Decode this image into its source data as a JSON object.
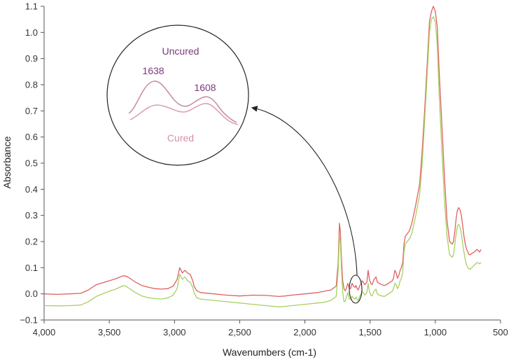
{
  "chart_data": {
    "type": "line",
    "xlabel": "Wavenumbers (cm-1)",
    "ylabel": "Absorbance",
    "xlim": [
      4000,
      500
    ],
    "ylim": [
      -0.1,
      1.1
    ],
    "x_reversed": true,
    "grid": false,
    "x_ticks": [
      "4,000",
      "3,500",
      "3,000",
      "2,500",
      "2,000",
      "1,500",
      "1,000",
      "500"
    ],
    "x_tick_values": [
      4000,
      3500,
      3000,
      2500,
      2000,
      1500,
      1000,
      500
    ],
    "y_ticks": [
      "−0.1",
      "0.0",
      "0.1",
      "0.2",
      "0.3",
      "0.4",
      "0.5",
      "0.6",
      "0.7",
      "0.8",
      "0.9",
      "1.0",
      "1.1"
    ],
    "y_tick_values": [
      -0.1,
      0.0,
      0.1,
      0.2,
      0.3,
      0.4,
      0.5,
      0.6,
      0.7,
      0.8,
      0.9,
      1.0,
      1.1
    ],
    "colors": {
      "uncured": "#e06060",
      "cured": "#a8d060",
      "inset_uncured": "#c890a8",
      "inset_cured": "#e0a0b0",
      "inset_label_uncured": "#7a3a7a",
      "inset_label_cured": "#d890a8"
    },
    "series": [
      {
        "key": "uncured",
        "x": [
          4000,
          3900,
          3800,
          3720,
          3660,
          3600,
          3500,
          3450,
          3400,
          3380,
          3350,
          3300,
          3250,
          3200,
          3150,
          3100,
          3050,
          3010,
          2980,
          2960,
          2940,
          2920,
          2900,
          2880,
          2860,
          2850,
          2830,
          2800,
          2700,
          2600,
          2500,
          2400,
          2300,
          2200,
          2150,
          2100,
          2000,
          1900,
          1850,
          1800,
          1760,
          1745,
          1735,
          1728,
          1720,
          1710,
          1700,
          1690,
          1680,
          1670,
          1660,
          1650,
          1638,
          1625,
          1615,
          1608,
          1600,
          1590,
          1580,
          1560,
          1540,
          1525,
          1515,
          1505,
          1495,
          1485,
          1470,
          1455,
          1445,
          1430,
          1410,
          1390,
          1375,
          1360,
          1345,
          1330,
          1320,
          1310,
          1300,
          1290,
          1280,
          1270,
          1260,
          1250,
          1240,
          1230,
          1200,
          1180,
          1150,
          1120,
          1100,
          1080,
          1060,
          1045,
          1030,
          1015,
          1000,
          985,
          970,
          950,
          930,
          910,
          890,
          870,
          860,
          850,
          840,
          830,
          820,
          810,
          800,
          790,
          780,
          770,
          760,
          750,
          740,
          730,
          720,
          700,
          680,
          660,
          650
        ],
        "y": [
          0.0,
          -0.002,
          0.0,
          0.002,
          0.015,
          0.035,
          0.05,
          0.058,
          0.068,
          0.069,
          0.062,
          0.045,
          0.032,
          0.025,
          0.02,
          0.018,
          0.02,
          0.03,
          0.055,
          0.1,
          0.08,
          0.09,
          0.08,
          0.075,
          0.05,
          0.03,
          0.012,
          0.005,
          0.0,
          -0.005,
          -0.008,
          -0.005,
          -0.006,
          -0.01,
          -0.008,
          -0.005,
          0.0,
          0.005,
          0.01,
          0.015,
          0.03,
          0.12,
          0.27,
          0.24,
          0.14,
          0.05,
          0.018,
          0.012,
          0.025,
          0.04,
          0.022,
          0.02,
          0.04,
          0.028,
          0.025,
          0.032,
          0.02,
          0.015,
          0.03,
          0.05,
          0.035,
          0.045,
          0.09,
          0.055,
          0.04,
          0.035,
          0.055,
          0.065,
          0.045,
          0.04,
          0.035,
          0.032,
          0.035,
          0.04,
          0.045,
          0.05,
          0.06,
          0.09,
          0.08,
          0.06,
          0.07,
          0.09,
          0.1,
          0.12,
          0.19,
          0.22,
          0.24,
          0.27,
          0.34,
          0.42,
          0.55,
          0.72,
          0.9,
          1.04,
          1.08,
          1.1,
          1.08,
          1.02,
          0.85,
          0.65,
          0.45,
          0.28,
          0.2,
          0.19,
          0.2,
          0.24,
          0.29,
          0.32,
          0.33,
          0.32,
          0.3,
          0.26,
          0.22,
          0.19,
          0.17,
          0.16,
          0.15,
          0.15,
          0.155,
          0.16,
          0.17,
          0.16,
          0.17
        ]
      },
      {
        "key": "cured",
        "x": [
          4000,
          3900,
          3800,
          3720,
          3660,
          3600,
          3500,
          3450,
          3400,
          3380,
          3350,
          3300,
          3250,
          3200,
          3150,
          3100,
          3050,
          3010,
          2980,
          2960,
          2940,
          2920,
          2900,
          2880,
          2860,
          2850,
          2830,
          2800,
          2700,
          2600,
          2500,
          2400,
          2300,
          2200,
          2150,
          2100,
          2000,
          1900,
          1850,
          1800,
          1760,
          1745,
          1735,
          1728,
          1720,
          1710,
          1700,
          1690,
          1680,
          1670,
          1660,
          1650,
          1638,
          1625,
          1615,
          1608,
          1600,
          1590,
          1580,
          1560,
          1540,
          1525,
          1515,
          1505,
          1495,
          1485,
          1470,
          1455,
          1445,
          1430,
          1410,
          1390,
          1375,
          1360,
          1345,
          1330,
          1320,
          1310,
          1300,
          1290,
          1280,
          1270,
          1260,
          1250,
          1240,
          1230,
          1200,
          1180,
          1150,
          1120,
          1100,
          1080,
          1060,
          1045,
          1030,
          1015,
          1000,
          985,
          970,
          950,
          930,
          910,
          890,
          870,
          860,
          850,
          840,
          830,
          820,
          810,
          800,
          790,
          780,
          770,
          760,
          750,
          740,
          730,
          720,
          700,
          680,
          660,
          650
        ],
        "y": [
          -0.045,
          -0.046,
          -0.045,
          -0.043,
          -0.03,
          -0.01,
          0.01,
          0.018,
          0.03,
          0.031,
          0.022,
          0.005,
          -0.008,
          -0.015,
          -0.018,
          -0.02,
          -0.015,
          -0.005,
          0.02,
          0.075,
          0.055,
          0.065,
          0.05,
          0.045,
          0.025,
          0.005,
          -0.015,
          -0.02,
          -0.025,
          -0.03,
          -0.035,
          -0.04,
          -0.045,
          -0.05,
          -0.048,
          -0.045,
          -0.04,
          -0.035,
          -0.032,
          -0.025,
          -0.01,
          0.09,
          0.22,
          0.2,
          0.1,
          0.005,
          -0.03,
          -0.028,
          -0.01,
          0.005,
          -0.02,
          -0.02,
          -0.008,
          -0.018,
          -0.02,
          -0.012,
          -0.022,
          -0.025,
          -0.01,
          0.01,
          -0.005,
          0.005,
          0.04,
          0.01,
          -0.005,
          -0.008,
          0.01,
          0.018,
          0.0,
          -0.005,
          -0.008,
          -0.01,
          -0.005,
          0.0,
          0.005,
          0.01,
          0.02,
          0.04,
          0.035,
          0.02,
          0.03,
          0.05,
          0.06,
          0.08,
          0.16,
          0.19,
          0.21,
          0.23,
          0.3,
          0.38,
          0.5,
          0.68,
          0.86,
          1.0,
          1.05,
          1.06,
          1.04,
          0.95,
          0.76,
          0.55,
          0.36,
          0.22,
          0.15,
          0.14,
          0.15,
          0.19,
          0.23,
          0.26,
          0.265,
          0.255,
          0.23,
          0.19,
          0.16,
          0.13,
          0.11,
          0.1,
          0.095,
          0.095,
          0.1,
          0.11,
          0.12,
          0.115,
          0.12
        ]
      }
    ],
    "annotation": {
      "uncured_label": "Uncured",
      "cured_label": "Cured",
      "peak_left": "1638",
      "peak_right": "1608"
    }
  }
}
